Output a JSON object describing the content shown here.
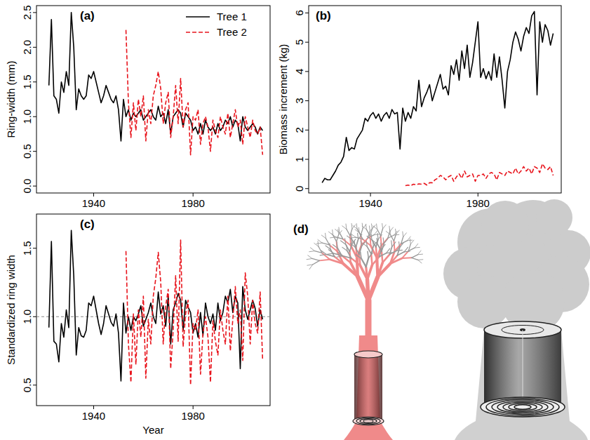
{
  "chart_data": [
    {
      "type": "line",
      "panel": "(a)",
      "ylabel": "Ring-width (mm)",
      "xlim": [
        1917,
        2011
      ],
      "xticks": [
        1940,
        1980
      ],
      "ylim": [
        -0.1,
        2.6
      ],
      "yticks": [
        {
          "value": 0,
          "label": "0.0"
        },
        0.5,
        {
          "value": 1,
          "label": "1.0"
        },
        1.5,
        {
          "value": 2,
          "label": "2.0"
        },
        2.5
      ],
      "legend": "top-right",
      "x": [
        1922,
        1923,
        1924,
        1925,
        1926,
        1927,
        1928,
        1929,
        1930,
        1931,
        1932,
        1933,
        1934,
        1935,
        1936,
        1937,
        1938,
        1939,
        1940,
        1941,
        1942,
        1943,
        1944,
        1945,
        1946,
        1947,
        1948,
        1949,
        1950,
        1951,
        1952,
        1953,
        1954,
        1955,
        1956,
        1957,
        1958,
        1959,
        1960,
        1961,
        1962,
        1963,
        1964,
        1965,
        1966,
        1967,
        1968,
        1969,
        1970,
        1971,
        1972,
        1973,
        1974,
        1975,
        1976,
        1977,
        1978,
        1979,
        1980,
        1981,
        1982,
        1983,
        1984,
        1985,
        1986,
        1987,
        1988,
        1989,
        1990,
        1991,
        1992,
        1993,
        1994,
        1995,
        1996,
        1997,
        1998,
        1999,
        2000,
        2001,
        2002,
        2003,
        2004,
        2005,
        2006,
        2007,
        2008
      ],
      "series": [
        {
          "name": "Tree 1",
          "color": "#000000",
          "line_style": "solid",
          "values": [
            1.45,
            2.4,
            1.3,
            1.25,
            1.05,
            1.5,
            1.35,
            1.65,
            1.45,
            2.5,
            2.0,
            1.1,
            1.4,
            1.3,
            1.25,
            1.3,
            1.6,
            1.55,
            1.65,
            1.5,
            1.35,
            1.2,
            1.3,
            1.45,
            1.35,
            1.25,
            1.2,
            1.3,
            1.1,
            0.65,
            1.25,
            1.0,
            1.1,
            0.95,
            1.05,
            1.0,
            1.05,
            1.1,
            0.95,
            1.0,
            1.05,
            1.1,
            1.0,
            0.95,
            1.15,
            1.0,
            1.05,
            0.9,
            1.1,
            0.75,
            1.0,
            1.05,
            1.1,
            1.05,
            0.85,
            1.05,
            1.0,
            0.95,
            0.8,
            0.85,
            0.75,
            0.9,
            0.75,
            0.95,
            0.85,
            0.8,
            0.85,
            0.75,
            0.9,
            0.8,
            0.85,
            0.95,
            0.9,
            1.0,
            0.85,
            0.95,
            0.9,
            0.65,
            1.0,
            0.85,
            0.8,
            0.85,
            0.9,
            0.85,
            0.75,
            0.85,
            0.8
          ]
        },
        {
          "name": "Tree 2",
          "color": "#e8141c",
          "line_style": "dashed",
          "values": [
            null,
            null,
            null,
            null,
            null,
            null,
            null,
            null,
            null,
            null,
            null,
            null,
            null,
            null,
            null,
            null,
            null,
            null,
            null,
            null,
            null,
            null,
            null,
            null,
            null,
            null,
            null,
            null,
            null,
            null,
            null,
            2.25,
            1.2,
            0.7,
            1.2,
            0.8,
            1.25,
            1.0,
            1.3,
            0.65,
            1.1,
            0.9,
            1.3,
            1.45,
            1.65,
            1.4,
            0.9,
            1.2,
            1.35,
            0.7,
            1.0,
            1.45,
            0.9,
            1.55,
            0.85,
            1.1,
            1.2,
            0.45,
            1.0,
            0.95,
            1.1,
            0.6,
            0.9,
            1.0,
            0.85,
            0.5,
            0.95,
            0.8,
            0.7,
            1.0,
            0.85,
            0.75,
            1.05,
            0.7,
            0.9,
            1.1,
            0.85,
            0.95,
            0.6,
            1.0,
            0.85,
            0.7,
            0.95,
            0.8,
            0.75,
            0.85,
            0.45
          ]
        }
      ]
    },
    {
      "type": "line",
      "panel": "(b)",
      "ylabel": "Biomass increment (kg)",
      "xlim": [
        1917,
        2011
      ],
      "xticks": [
        1940,
        1980
      ],
      "ylim": [
        -0.15,
        6.25
      ],
      "yticks": [
        0,
        1,
        2,
        3,
        4,
        5,
        6
      ],
      "x": [
        1922,
        1923,
        1924,
        1925,
        1926,
        1927,
        1928,
        1929,
        1930,
        1931,
        1932,
        1933,
        1934,
        1935,
        1936,
        1937,
        1938,
        1939,
        1940,
        1941,
        1942,
        1943,
        1944,
        1945,
        1946,
        1947,
        1948,
        1949,
        1950,
        1951,
        1952,
        1953,
        1954,
        1955,
        1956,
        1957,
        1958,
        1959,
        1960,
        1961,
        1962,
        1963,
        1964,
        1965,
        1966,
        1967,
        1968,
        1969,
        1970,
        1971,
        1972,
        1973,
        1974,
        1975,
        1976,
        1977,
        1978,
        1979,
        1980,
        1981,
        1982,
        1983,
        1984,
        1985,
        1986,
        1987,
        1988,
        1989,
        1990,
        1991,
        1992,
        1993,
        1994,
        1995,
        1996,
        1997,
        1998,
        1999,
        2000,
        2001,
        2002,
        2003,
        2004,
        2005,
        2006,
        2007,
        2008
      ],
      "series": [
        {
          "color": "#000000",
          "line_style": "solid",
          "values": [
            0.2,
            0.35,
            0.3,
            0.3,
            0.45,
            0.6,
            0.8,
            0.9,
            1.1,
            1.75,
            1.3,
            1.4,
            1.35,
            1.7,
            1.85,
            2.0,
            2.4,
            2.3,
            2.5,
            2.6,
            2.4,
            2.55,
            2.3,
            2.5,
            2.6,
            2.4,
            2.7,
            2.55,
            2.6,
            1.35,
            2.75,
            2.3,
            2.6,
            2.4,
            2.8,
            2.65,
            3.7,
            2.8,
            3.1,
            3.3,
            3.55,
            3.0,
            3.3,
            3.6,
            3.9,
            3.4,
            3.5,
            3.2,
            4.2,
            3.9,
            4.4,
            3.7,
            4.7,
            4.1,
            4.9,
            3.8,
            4.3,
            5.0,
            5.7,
            3.8,
            4.1,
            3.75,
            4.0,
            3.7,
            4.6,
            3.8,
            4.5,
            3.7,
            2.75,
            4.0,
            4.4,
            5.0,
            5.35,
            5.1,
            4.7,
            5.2,
            5.5,
            5.3,
            5.9,
            6.05,
            3.2,
            5.7,
            5.0,
            5.6,
            5.4,
            4.9,
            5.3
          ]
        },
        {
          "color": "#e8141c",
          "line_style": "dashed",
          "values": [
            null,
            null,
            null,
            null,
            null,
            null,
            null,
            null,
            null,
            null,
            null,
            null,
            null,
            null,
            null,
            null,
            null,
            null,
            null,
            null,
            null,
            null,
            null,
            null,
            null,
            null,
            null,
            null,
            null,
            null,
            null,
            0.1,
            0.12,
            0.1,
            0.15,
            0.13,
            0.16,
            0.15,
            0.18,
            0.12,
            0.2,
            0.2,
            0.3,
            0.35,
            0.45,
            0.4,
            0.3,
            0.4,
            0.45,
            0.25,
            0.4,
            0.5,
            0.35,
            0.6,
            0.4,
            0.45,
            0.5,
            0.25,
            0.45,
            0.45,
            0.5,
            0.35,
            0.5,
            0.55,
            0.5,
            0.3,
            0.55,
            0.5,
            0.45,
            0.6,
            0.55,
            0.5,
            0.7,
            0.5,
            0.6,
            0.75,
            0.6,
            0.7,
            0.5,
            0.75,
            0.7,
            0.55,
            0.85,
            0.7,
            0.65,
            0.75,
            0.45
          ]
        }
      ]
    },
    {
      "type": "line",
      "panel": "(c)",
      "ylabel": "Standardized ring width",
      "xlabel": "Year",
      "xlim": [
        1917,
        2011
      ],
      "xticks": [
        1940,
        1980
      ],
      "ylim": [
        0.35,
        1.75
      ],
      "yticks": [
        0.5,
        {
          "value": 1,
          "label": "1.0"
        },
        1.5
      ],
      "hline": 1,
      "x": [
        1922,
        1923,
        1924,
        1925,
        1926,
        1927,
        1928,
        1929,
        1930,
        1931,
        1932,
        1933,
        1934,
        1935,
        1936,
        1937,
        1938,
        1939,
        1940,
        1941,
        1942,
        1943,
        1944,
        1945,
        1946,
        1947,
        1948,
        1949,
        1950,
        1951,
        1952,
        1953,
        1954,
        1955,
        1956,
        1957,
        1958,
        1959,
        1960,
        1961,
        1962,
        1963,
        1964,
        1965,
        1966,
        1967,
        1968,
        1969,
        1970,
        1971,
        1972,
        1973,
        1974,
        1975,
        1976,
        1977,
        1978,
        1979,
        1980,
        1981,
        1982,
        1983,
        1984,
        1985,
        1986,
        1987,
        1988,
        1989,
        1990,
        1991,
        1992,
        1993,
        1994,
        1995,
        1996,
        1997,
        1998,
        1999,
        2000,
        2001,
        2002,
        2003,
        2004,
        2005,
        2006,
        2007,
        2008
      ],
      "series": [
        {
          "color": "#000000",
          "line_style": "solid",
          "values": [
            0.92,
            1.55,
            0.82,
            0.8,
            0.67,
            0.95,
            0.85,
            1.05,
            0.92,
            1.63,
            1.3,
            0.72,
            0.92,
            0.86,
            0.85,
            0.9,
            1.1,
            1.08,
            1.15,
            1.05,
            0.95,
            0.87,
            0.95,
            1.08,
            1.02,
            0.96,
            0.93,
            1.02,
            0.88,
            0.53,
            1.1,
            0.88,
            1.0,
            0.9,
            1.0,
            0.97,
            1.02,
            1.08,
            0.93,
            0.98,
            1.03,
            1.1,
            1.0,
            0.95,
            1.18,
            1.02,
            1.08,
            0.93,
            1.15,
            0.8,
            1.05,
            1.1,
            1.17,
            1.12,
            0.9,
            1.12,
            1.07,
            1.03,
            0.88,
            0.95,
            0.85,
            1.03,
            0.86,
            1.1,
            1.0,
            0.95,
            1.02,
            0.9,
            1.1,
            0.97,
            1.03,
            1.15,
            1.1,
            1.2,
            1.03,
            1.15,
            1.1,
            0.62,
            1.22,
            1.05,
            0.98,
            1.05,
            1.12,
            1.06,
            0.93,
            1.05,
            0.98
          ]
        },
        {
          "color": "#e8141c",
          "line_style": "dashed",
          "values": [
            null,
            null,
            null,
            null,
            null,
            null,
            null,
            null,
            null,
            null,
            null,
            null,
            null,
            null,
            null,
            null,
            null,
            null,
            null,
            null,
            null,
            null,
            null,
            null,
            null,
            null,
            null,
            null,
            null,
            null,
            null,
            1.48,
            0.8,
            0.52,
            1.02,
            0.65,
            1.05,
            0.85,
            1.15,
            0.55,
            0.98,
            0.8,
            1.15,
            1.28,
            1.47,
            1.25,
            0.8,
            1.08,
            1.2,
            0.62,
            0.9,
            1.3,
            0.82,
            1.56,
            0.78,
            1.02,
            1.12,
            0.5,
            0.95,
            0.9,
            1.05,
            0.58,
            0.88,
            1.0,
            0.85,
            0.52,
            0.97,
            0.82,
            0.72,
            1.05,
            0.9,
            0.8,
            1.15,
            0.75,
            0.98,
            1.22,
            0.95,
            1.05,
            0.68,
            1.32,
            1.15,
            0.8,
            1.12,
            0.95,
            0.88,
            1.18,
            0.68
          ]
        }
      ]
    }
  ],
  "diagram": {
    "panel": "(d)"
  }
}
